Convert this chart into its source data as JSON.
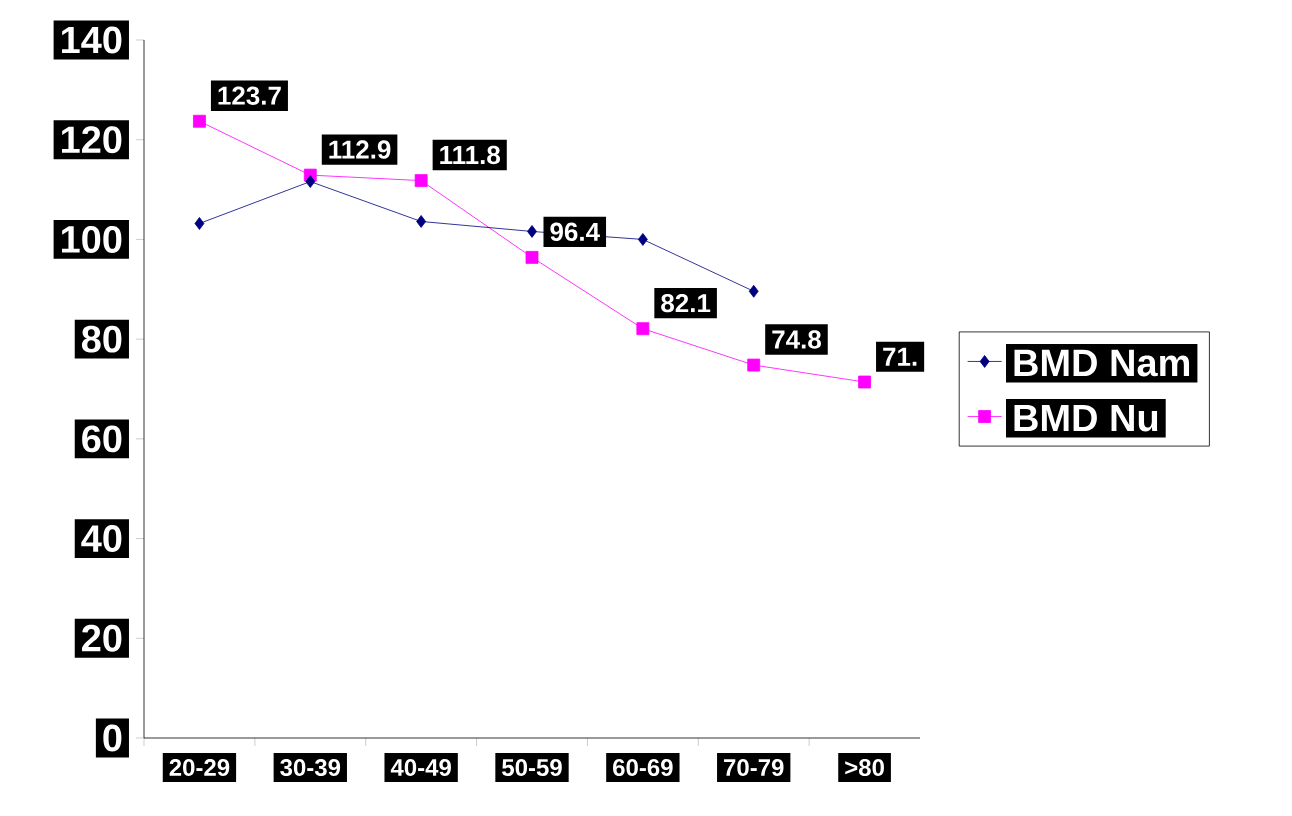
{
  "chart_data": {
    "type": "line",
    "categories": [
      "20-29",
      "30-39",
      "40-49",
      "50-59",
      "60-69",
      "70-79",
      ">80"
    ],
    "series": [
      {
        "name": "BMD Nam",
        "color": "#000080",
        "marker": "diamond",
        "values": [
          103.2,
          111.6,
          103.6,
          101.6,
          100,
          89.6,
          null
        ]
      },
      {
        "name": "BMD Nu",
        "color": "#ff00ff",
        "marker": "square",
        "values": [
          123.7,
          112.9,
          111.8,
          96.4,
          82.1,
          74.8,
          71.4
        ],
        "value_labels": [
          "123.7",
          "112.9",
          "111.8",
          "96.4",
          "82.1",
          "74.8",
          "71."
        ]
      }
    ],
    "ylim": [
      0,
      140
    ],
    "yticks": [
      0,
      20,
      40,
      60,
      80,
      100,
      120,
      140
    ],
    "grid": false,
    "legend": "right"
  }
}
